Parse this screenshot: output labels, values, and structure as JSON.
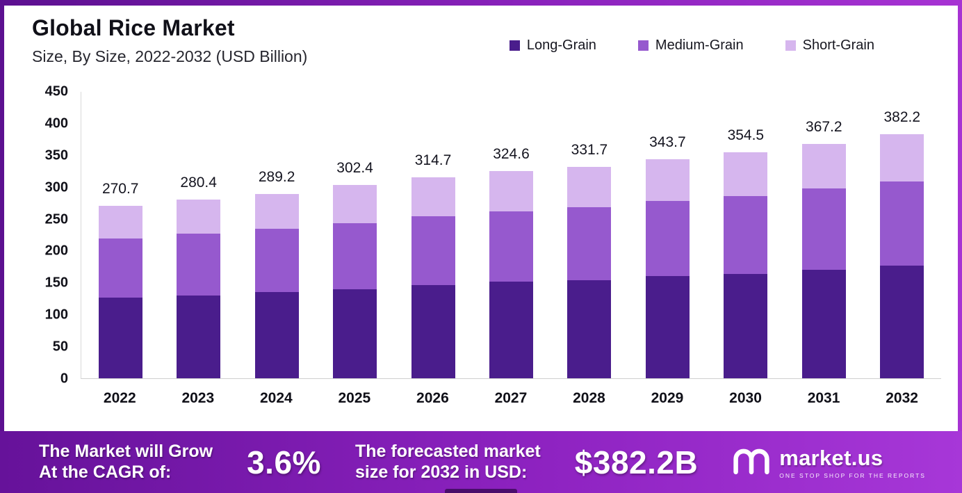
{
  "title": "Global Rice Market",
  "subtitle": "Size, By Size, 2022-2032 (USD Billion)",
  "legend": [
    {
      "label": "Long-Grain",
      "color": "#4a1d8c"
    },
    {
      "label": "Medium-Grain",
      "color": "#9659ce"
    },
    {
      "label": "Short-Grain",
      "color": "#d6b6ee"
    }
  ],
  "chart_data": {
    "type": "bar",
    "stacked": true,
    "title": "Global Rice Market Size, By Size, 2022-2032 (USD Billion)",
    "categories": [
      "2022",
      "2023",
      "2024",
      "2025",
      "2026",
      "2027",
      "2028",
      "2029",
      "2030",
      "2031",
      "2032"
    ],
    "series": [
      {
        "name": "Long-Grain",
        "color": "#4a1d8c",
        "values": [
          126,
          130,
          135,
          140,
          146,
          151,
          154,
          160,
          164,
          170,
          177
        ]
      },
      {
        "name": "Medium-Grain",
        "color": "#9659ce",
        "values": [
          93,
          97,
          99,
          103,
          108,
          111,
          114,
          118,
          121,
          127,
          131
        ]
      },
      {
        "name": "Short-Grain",
        "color": "#d6b6ee",
        "values": [
          51.7,
          53.4,
          55.2,
          59.4,
          60.7,
          62.6,
          63.7,
          65.7,
          69.5,
          70.2,
          74.2
        ]
      }
    ],
    "totals": [
      270.7,
      280.4,
      289.2,
      302.4,
      314.7,
      324.6,
      331.7,
      343.7,
      354.5,
      367.2,
      382.2
    ],
    "xlabel": "",
    "ylabel": "",
    "ylim": [
      0,
      450
    ],
    "yticks": [
      450,
      400,
      350,
      300,
      250,
      200,
      150,
      100,
      50,
      0
    ],
    "grid": false,
    "legend_position": "top"
  },
  "footer": {
    "cagr_label": "The Market will Grow\nAt the CAGR of:",
    "cagr_value": "3.6%",
    "forecast_label": "The forecasted market\nsize for 2032 in USD:",
    "forecast_value": "$382.2B",
    "brand": "market.us",
    "brand_tagline": "ONE STOP SHOP FOR THE REPORTS"
  }
}
